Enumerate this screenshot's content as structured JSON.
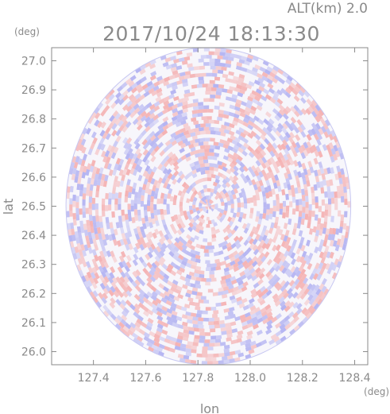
{
  "chart_data": {
    "type": "heatmap",
    "title": "2017/10/24 18:13:30",
    "subtitle": "ALT(km) 2.0",
    "xlabel": "lon",
    "ylabel": "lat",
    "x_unit": "(deg)",
    "y_unit": "(deg)",
    "xlim": [
      127.24,
      128.45
    ],
    "ylim": [
      25.955,
      27.045
    ],
    "x_ticks": [
      127.4,
      127.6,
      127.8,
      128.0,
      128.2,
      128.4
    ],
    "x_tick_labels": [
      "127.4",
      "127.6",
      "127.8",
      "128.0",
      "128.2",
      "128.4"
    ],
    "y_ticks": [
      26.0,
      26.1,
      26.2,
      26.3,
      26.4,
      26.5,
      26.6,
      26.7,
      26.8,
      26.9,
      27.0
    ],
    "y_tick_labels": [
      "26.0",
      "26.1",
      "26.2",
      "26.3",
      "26.4",
      "26.5",
      "26.6",
      "26.7",
      "26.8",
      "26.9",
      "27.0"
    ],
    "radar_center": {
      "lon": 127.84,
      "lat": 26.5
    },
    "radar_range_deg": 0.545,
    "grid": false,
    "colors": {
      "positive": "#f4a6a6",
      "negative": "#a8a8f0",
      "neutral": "#ffffff",
      "axis": "#8a8a8a"
    }
  }
}
